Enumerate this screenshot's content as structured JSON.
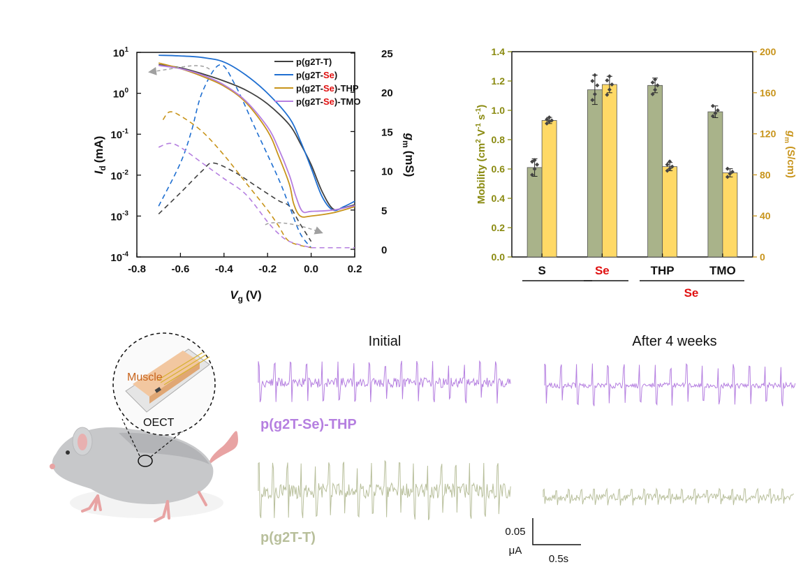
{
  "chart_data": [
    {
      "type": "line",
      "xlabel_main": "V",
      "xlabel_sub": "g",
      "xlabel_unit": "(V)",
      "ylabel_main": "I",
      "ylabel_sub": "d",
      "ylabel_unit": "(mA)",
      "y2label_main": "g",
      "y2label_sub": "m",
      "y2label_unit": "(mS)",
      "xlim": [
        -0.8,
        0.2
      ],
      "ylim_log": [
        -4,
        1
      ],
      "y2lim": [
        0,
        25
      ],
      "xticks": [
        "-0.8",
        "-0.6",
        "-0.4",
        "-0.2",
        "0.0",
        "0.2"
      ],
      "yticks_base": "10",
      "yticks_exp": [
        "1",
        "0",
        "-1",
        "-2",
        "-3",
        "-4"
      ],
      "y2ticks": [
        "25",
        "20",
        "15",
        "10",
        "5",
        "0"
      ],
      "legend": [
        {
          "prefix": "p(g2T-T)",
          "red": "",
          "suffix": "",
          "color": "#404040"
        },
        {
          "prefix": "p(g2T-",
          "red": "Se",
          "suffix": ")",
          "color": "#1f6fd1"
        },
        {
          "prefix": "p(g2T-",
          "red": "Se",
          "suffix": ")-THP",
          "color": "#c8941b"
        },
        {
          "prefix": "p(g2T-",
          "red": "Se",
          "suffix": ")-TMO",
          "color": "#b57fe0"
        }
      ],
      "series": [
        {
          "name": "p(g2T-T)",
          "color": "#404040",
          "id": [
            [
              -0.7,
              5.0
            ],
            [
              -0.6,
              4.2
            ],
            [
              -0.5,
              3.0
            ],
            [
              -0.4,
              2.0
            ],
            [
              -0.3,
              1.2
            ],
            [
              -0.2,
              0.55
            ],
            [
              -0.1,
              0.17
            ],
            [
              -0.05,
              0.06
            ],
            [
              0.0,
              0.018
            ],
            [
              0.05,
              0.004
            ],
            [
              0.1,
              0.0015
            ],
            [
              0.15,
              0.0016
            ],
            [
              0.2,
              0.0019
            ]
          ],
          "gm": [
            [
              -0.7,
              4.5
            ],
            [
              -0.6,
              7.2
            ],
            [
              -0.5,
              10.0
            ],
            [
              -0.45,
              11.0
            ],
            [
              -0.35,
              9.8
            ],
            [
              -0.25,
              8.0
            ],
            [
              -0.15,
              6.2
            ],
            [
              -0.1,
              5.5
            ],
            [
              -0.05,
              3.2
            ],
            [
              0.0,
              1.0
            ]
          ]
        },
        {
          "name": "p(g2T-Se)",
          "color": "#1f6fd1",
          "id": [
            [
              -0.7,
              8.5
            ],
            [
              -0.6,
              8.2
            ],
            [
              -0.5,
              7.5
            ],
            [
              -0.4,
              5.8
            ],
            [
              -0.3,
              2.8
            ],
            [
              -0.2,
              1.0
            ],
            [
              -0.1,
              0.25
            ],
            [
              -0.05,
              0.07
            ],
            [
              0.0,
              0.015
            ],
            [
              0.05,
              0.003
            ],
            [
              0.1,
              0.0014
            ],
            [
              0.15,
              0.0017
            ],
            [
              0.2,
              0.0023
            ]
          ],
          "gm": [
            [
              -0.7,
              5.5
            ],
            [
              -0.6,
              11.0
            ],
            [
              -0.55,
              15.0
            ],
            [
              -0.5,
              20.0
            ],
            [
              -0.42,
              23.5
            ],
            [
              -0.35,
              21.0
            ],
            [
              -0.25,
              15.0
            ],
            [
              -0.15,
              9.0
            ],
            [
              -0.1,
              5.5
            ],
            [
              -0.05,
              2.0
            ],
            [
              0.0,
              0.2
            ]
          ]
        },
        {
          "name": "p(g2T-Se)-THP",
          "color": "#c8941b",
          "id": [
            [
              -0.7,
              5.5
            ],
            [
              -0.6,
              4.0
            ],
            [
              -0.5,
              2.6
            ],
            [
              -0.4,
              1.5
            ],
            [
              -0.3,
              0.6
            ],
            [
              -0.2,
              0.12
            ],
            [
              -0.15,
              0.03
            ],
            [
              -0.1,
              0.006
            ],
            [
              -0.08,
              0.002
            ],
            [
              -0.05,
              0.001
            ],
            [
              0.0,
              0.001
            ],
            [
              0.1,
              0.0012
            ],
            [
              0.2,
              0.0017
            ]
          ],
          "gm": [
            [
              -0.68,
              16.5
            ],
            [
              -0.65,
              17.5
            ],
            [
              -0.6,
              17.0
            ],
            [
              -0.5,
              15.0
            ],
            [
              -0.4,
              12.0
            ],
            [
              -0.3,
              8.5
            ],
            [
              -0.2,
              5.0
            ],
            [
              -0.15,
              3.0
            ],
            [
              -0.1,
              1.0
            ],
            [
              0.0,
              0.2
            ]
          ]
        },
        {
          "name": "p(g2T-Se)-TMO",
          "color": "#b57fe0",
          "id": [
            [
              -0.7,
              4.8
            ],
            [
              -0.6,
              4.0
            ],
            [
              -0.5,
              2.8
            ],
            [
              -0.4,
              1.6
            ],
            [
              -0.3,
              0.65
            ],
            [
              -0.2,
              0.15
            ],
            [
              -0.15,
              0.045
            ],
            [
              -0.1,
              0.01
            ],
            [
              -0.07,
              0.003
            ],
            [
              -0.04,
              0.0013
            ],
            [
              0.0,
              0.0013
            ],
            [
              0.1,
              0.0014
            ],
            [
              0.2,
              0.0018
            ]
          ],
          "gm": [
            [
              -0.7,
              13.0
            ],
            [
              -0.65,
              13.5
            ],
            [
              -0.6,
              13.0
            ],
            [
              -0.5,
              11.0
            ],
            [
              -0.4,
              9.0
            ],
            [
              -0.3,
              7.0
            ],
            [
              -0.2,
              3.5
            ],
            [
              -0.15,
              2.0
            ],
            [
              -0.1,
              1.0
            ],
            [
              0.0,
              0.2
            ]
          ]
        }
      ]
    },
    {
      "type": "bar",
      "categories": [
        "S",
        "Se",
        "THP",
        "TMO"
      ],
      "category_colors": [
        "#111111",
        "#e01010",
        "#111111",
        "#111111"
      ],
      "group_label": "Se",
      "ylabel": "Mobility (cm² V⁻¹ s⁻¹)",
      "ylabel_parts": {
        "a": "Mobility (cm",
        "b": "2",
        "c": " V",
        "d": "-1",
        "e": " s",
        "f": "-1",
        "g": ")"
      },
      "y2label_parts": {
        "a": "g",
        "b": "m",
        "c": " (S/cm)"
      },
      "ylim": [
        0,
        1.4
      ],
      "y2lim": [
        0,
        200
      ],
      "yticks": [
        "0.0",
        "0.2",
        "0.4",
        "0.6",
        "0.8",
        "1.0",
        "1.2",
        "1.4"
      ],
      "y2ticks": [
        "0",
        "40",
        "80",
        "120",
        "160",
        "200"
      ],
      "left_color": "#8a8a10",
      "right_color": "#c8941b",
      "series": [
        {
          "name": "Mobility",
          "values": [
            0.61,
            1.14,
            1.17,
            0.99
          ],
          "errors": [
            0.06,
            0.1,
            0.05,
            0.04
          ],
          "color": "#a9b38a",
          "points": [
            [
              0.56,
              0.6,
              0.63,
              0.65,
              0.66
            ],
            [
              1.07,
              1.11,
              1.17,
              1.2,
              1.24
            ],
            [
              1.11,
              1.14,
              1.17,
              1.19,
              1.21
            ],
            [
              0.96,
              0.98,
              1.0,
              1.03
            ]
          ]
        },
        {
          "name": "gm",
          "values": [
            133,
            168,
            88,
            82
          ],
          "errors": [
            3,
            8,
            4,
            4
          ],
          "color": "#ffd966",
          "points": [
            [
              130,
              132,
              133,
              134,
              136
            ],
            [
              158,
              163,
              168,
              172,
              176
            ],
            [
              84,
              86,
              88,
              90,
              93
            ],
            [
              78,
              81,
              83,
              86
            ]
          ]
        }
      ]
    }
  ],
  "panel_c": {
    "illustration_labels": {
      "muscle": "Muscle",
      "device": "OECT"
    },
    "column_titles": [
      "Initial",
      "After 4 weeks"
    ],
    "trace_labels": [
      {
        "text": "p(g2T-Se)-THP",
        "color": "#b57fe0"
      },
      {
        "text": "p(g2T-T)",
        "color": "#b8bf9b"
      }
    ],
    "scale_bar": {
      "vertical": "0.05",
      "vertical_unit": "μA",
      "horizontal": "0.5s"
    }
  }
}
